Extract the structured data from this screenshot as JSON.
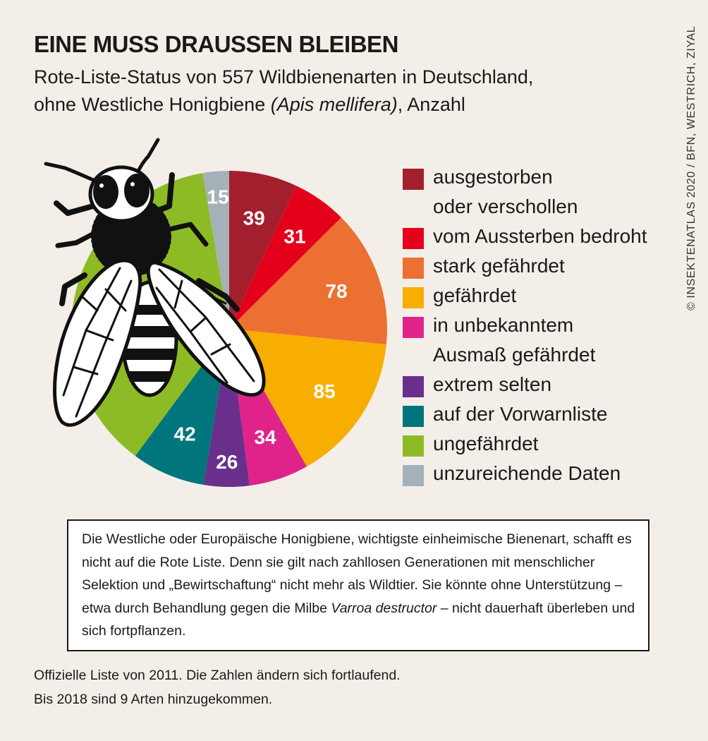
{
  "header": {
    "title": "EINE MUSS DRAUSSEN BLEIBEN",
    "subtitle_line1": "Rote-Liste-Status von 557 Wildbienenarten in Deutschland,",
    "subtitle_line2_pre": "ohne Westliche Honigbiene ",
    "subtitle_line2_italic": "(Apis mellifera)",
    "subtitle_line2_post": ", Anzahl"
  },
  "credit": "© INSEKTENATLAS 2020 / BFN, WESTRICH, ZIYAL",
  "chart_data": {
    "type": "pie",
    "title": "EINE MUSS DRAUSSEN BLEIBEN",
    "total": 557,
    "slices": [
      {
        "label": "ausgestorben oder verschollen",
        "value": 39,
        "color": "#a31f2e"
      },
      {
        "label": "vom Aussterben bedroht",
        "value": 31,
        "color": "#e4001b"
      },
      {
        "label": "stark gefährdet",
        "value": 78,
        "color": "#ec7031"
      },
      {
        "label": "gefährdet",
        "value": 85,
        "color": "#f8ae00"
      },
      {
        "label": "in unbekanntem Ausmaß gefährdet",
        "value": 34,
        "color": "#e0238b"
      },
      {
        "label": "extrem selten",
        "value": 26,
        "color": "#6a2f8c"
      },
      {
        "label": "auf der Vorwarnliste",
        "value": 42,
        "color": "#00757c"
      },
      {
        "label": "ungefährdet",
        "value": 207,
        "color": "#8dbb25"
      },
      {
        "label": "unzureichende Daten",
        "value": 15,
        "color": "#a5b1b8"
      }
    ],
    "label_color": "#ffffff",
    "legend_placement": "right"
  },
  "legend": [
    {
      "line1": "ausgestorben",
      "line2": "oder verschollen",
      "color": "#a31f2e"
    },
    {
      "line1": "vom Aussterben bedroht",
      "line2": "",
      "color": "#e4001b"
    },
    {
      "line1": "stark gefährdet",
      "line2": "",
      "color": "#ec7031"
    },
    {
      "line1": "gefährdet",
      "line2": "",
      "color": "#f8ae00"
    },
    {
      "line1": "in unbekanntem",
      "line2": "Ausmaß gefährdet",
      "color": "#e0238b"
    },
    {
      "line1": "extrem selten",
      "line2": "",
      "color": "#6a2f8c"
    },
    {
      "line1": "auf der Vorwarnliste",
      "line2": "",
      "color": "#00757c"
    },
    {
      "line1": "ungefährdet",
      "line2": "",
      "color": "#8dbb25"
    },
    {
      "line1": "unzureichende Daten",
      "line2": "",
      "color": "#a5b1b8"
    }
  ],
  "note": {
    "text_pre": "Die Westliche oder Europäische Honigbiene, wichtigste einheimische Bienenart, schafft es nicht auf die Rote Liste. Denn sie gilt nach zahllosen Generationen mit menschlicher Selektion und „Bewirtschaftung“ nicht mehr als Wildtier. Sie könnte ohne Unterstützung – etwa durch Behandlung gegen die Milbe ",
    "text_italic": "Varroa destructor",
    "text_post": " – nicht dauerhaft überleben und sich fortpflanzen."
  },
  "footer": {
    "line1": "Offizielle Liste von 2011. Die Zahlen ändern sich fortlaufend.",
    "line2": "Bis 2018 sind 9 Arten hinzugekommen."
  },
  "illustration": {
    "icon": "bee-icon"
  }
}
